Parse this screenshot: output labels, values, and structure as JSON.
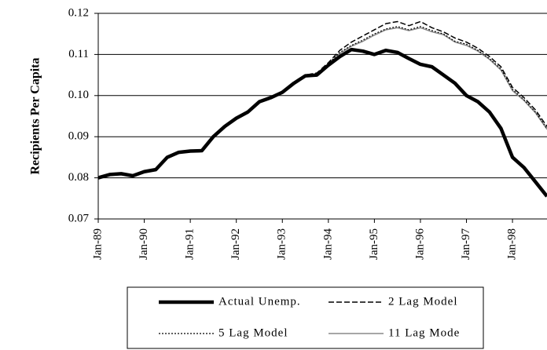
{
  "chart_data": {
    "type": "line",
    "y_label": "Recipients Per Capita",
    "categories": [
      "Jan-89",
      null,
      null,
      null,
      "Jan-90",
      null,
      null,
      null,
      "Jan-91",
      null,
      null,
      null,
      "Jan-92",
      null,
      null,
      null,
      "Jan-93",
      null,
      null,
      null,
      "Jan-94",
      null,
      null,
      null,
      "Jan-95",
      null,
      null,
      null,
      "Jan-96",
      null,
      null,
      null,
      "Jan-97",
      null,
      null,
      null,
      "Jan-98",
      null,
      null,
      null
    ],
    "series": [
      {
        "name": "Actual Unemp.",
        "color": "#000000",
        "line_style": "thick",
        "values": [
          0.08,
          0.0808,
          0.081,
          0.0805,
          0.0815,
          0.082,
          0.085,
          0.0862,
          0.0865,
          0.0866,
          0.09,
          0.0925,
          0.0945,
          0.096,
          0.0985,
          0.0995,
          0.1008,
          0.103,
          0.1048,
          0.105,
          0.1074,
          0.1095,
          0.1112,
          0.1108,
          0.11,
          0.111,
          0.1105,
          0.109,
          0.1076,
          0.107,
          0.105,
          0.103,
          0.1,
          0.0985,
          0.096,
          0.092,
          0.085,
          0.0825,
          0.079,
          0.0755
        ]
      },
      {
        "name": "2 Lag Model",
        "color": "#000000",
        "line_style": "dashed",
        "values": [
          0.08,
          0.0808,
          0.081,
          0.0805,
          0.0815,
          0.082,
          0.085,
          0.0862,
          0.0865,
          0.0866,
          0.09,
          0.0925,
          0.0945,
          0.096,
          0.0985,
          0.0995,
          0.1008,
          0.103,
          0.105,
          0.1055,
          0.108,
          0.111,
          0.113,
          0.1145,
          0.116,
          0.1175,
          0.118,
          0.117,
          0.118,
          0.1165,
          0.1155,
          0.114,
          0.113,
          0.1115,
          0.1095,
          0.107,
          0.102,
          0.0995,
          0.0965,
          0.0925
        ]
      },
      {
        "name": "5 Lag Model",
        "color": "#000000",
        "line_style": "dotted",
        "values": [
          0.08,
          0.0808,
          0.081,
          0.0805,
          0.0815,
          0.082,
          0.085,
          0.0862,
          0.0865,
          0.0866,
          0.09,
          0.0925,
          0.0945,
          0.096,
          0.0985,
          0.0995,
          0.1008,
          0.103,
          0.1049,
          0.1053,
          0.1078,
          0.1105,
          0.1122,
          0.1135,
          0.115,
          0.1162,
          0.1168,
          0.116,
          0.1168,
          0.1158,
          0.115,
          0.1132,
          0.1125,
          0.111,
          0.109,
          0.1065,
          0.1015,
          0.099,
          0.096,
          0.092
        ]
      },
      {
        "name": "11 Lag Mode",
        "color": "#888888",
        "line_style": "thin",
        "values": [
          0.08,
          0.0808,
          0.081,
          0.0805,
          0.0815,
          0.082,
          0.085,
          0.0862,
          0.0865,
          0.0866,
          0.09,
          0.0925,
          0.0945,
          0.096,
          0.0985,
          0.0995,
          0.1008,
          0.103,
          0.1048,
          0.1052,
          0.1076,
          0.1102,
          0.112,
          0.1132,
          0.1147,
          0.116,
          0.1165,
          0.1158,
          0.1165,
          0.1155,
          0.1148,
          0.113,
          0.1122,
          0.1108,
          0.1088,
          0.1062,
          0.1012,
          0.0988,
          0.0958,
          0.0918
        ]
      }
    ],
    "ylim": [
      0.07,
      0.12
    ],
    "yticks": [
      0.07,
      0.08,
      0.09,
      {
        "value": 0.1,
        "label": "0.10"
      },
      0.11,
      0.12
    ],
    "grid": true,
    "legend": "bottom"
  }
}
